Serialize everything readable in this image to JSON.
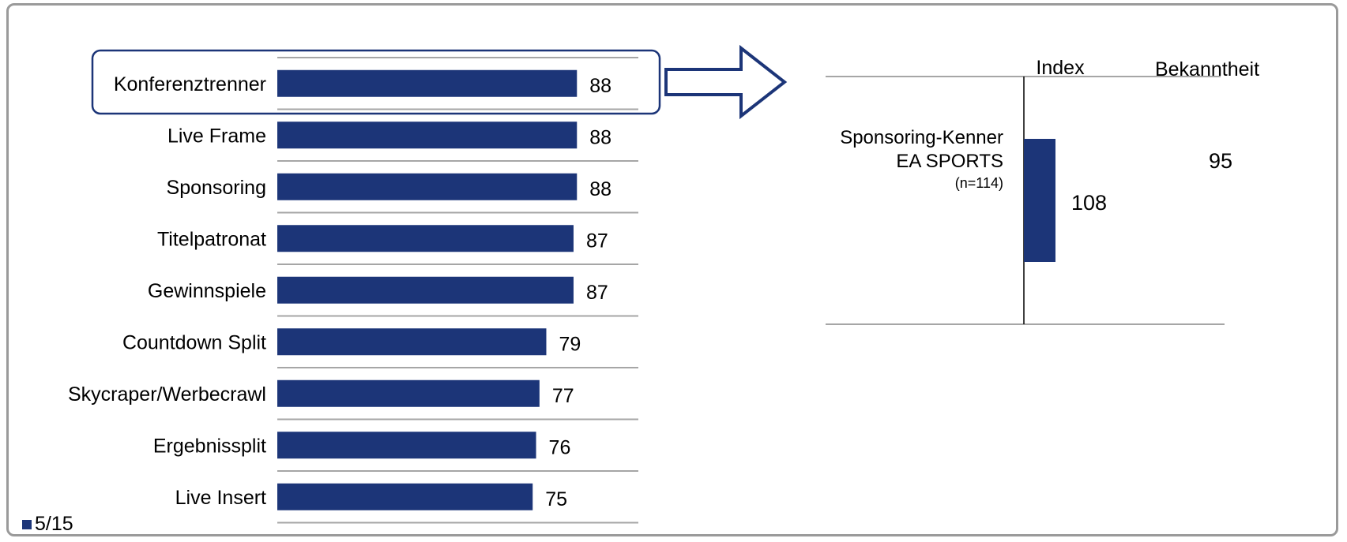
{
  "colors": {
    "bar": "#1C3578",
    "grid": "#a6a6a6",
    "frame": "#9a9a9a",
    "highlight_border": "#1C3578"
  },
  "legend": {
    "label": "5/15"
  },
  "chart_data": [
    {
      "type": "bar",
      "orientation": "horizontal",
      "categories": [
        "Konferenztrenner",
        "Live Frame",
        "Sponsoring",
        "Titelpatronat",
        "Gewinnspiele",
        "Countdown Split",
        "Skycraper/Werbecrawl",
        "Ergebnissplit",
        "Live Insert"
      ],
      "series": [
        {
          "name": "5/15",
          "values": [
            88,
            88,
            88,
            87,
            87,
            79,
            77,
            76,
            75
          ]
        }
      ],
      "highlighted_category": "Konferenztrenner",
      "data_labels": true
    },
    {
      "type": "bar",
      "orientation": "horizontal",
      "column_headers": [
        "Index",
        "Bekanntheit"
      ],
      "category_lines": [
        "Sponsoring-Kenner",
        "EA SPORTS",
        "(n=114)"
      ],
      "index_value": 108,
      "index_baseline": 100,
      "bekanntheit_value": 95
    }
  ]
}
